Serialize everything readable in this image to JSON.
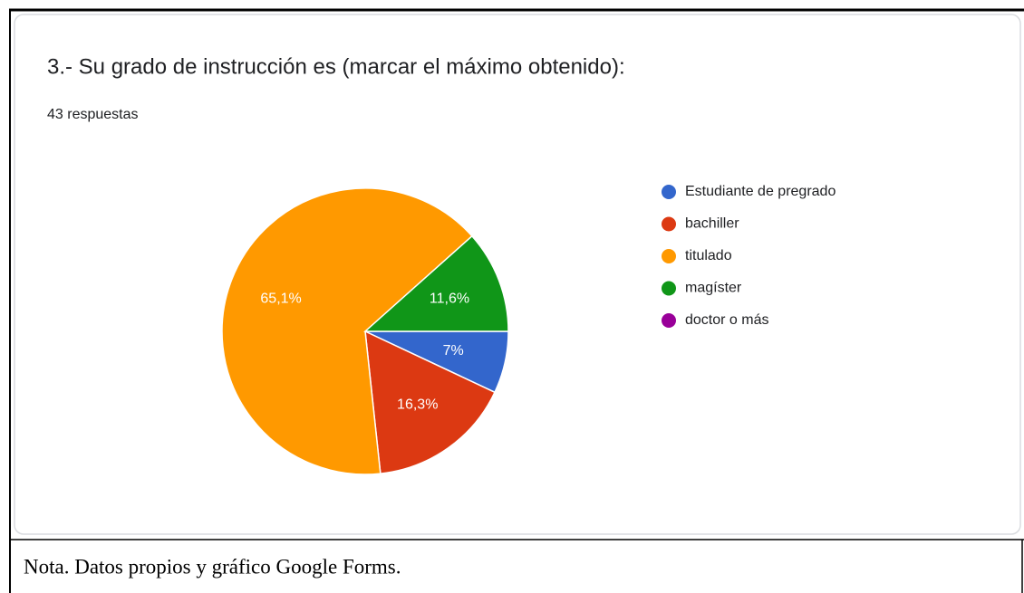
{
  "chart_data": {
    "type": "pie",
    "title": "3.- Su grado de instrucción es (marcar el máximo obtenido):",
    "subtitle": "43 respuestas",
    "categories": [
      "Estudiante de pregrado",
      "bachiller",
      "titulado",
      "magíster",
      "doctor o más"
    ],
    "values": [
      7,
      16.3,
      65.1,
      11.6,
      0
    ],
    "value_labels": [
      "7%",
      "16,3%",
      "65,1%",
      "11,6%",
      null
    ],
    "colors": [
      "#3366cc",
      "#dc3912",
      "#ff9900",
      "#109618",
      "#990099"
    ],
    "legend": "right"
  },
  "caption": "Nota. Datos propios y gráfico Google Forms."
}
